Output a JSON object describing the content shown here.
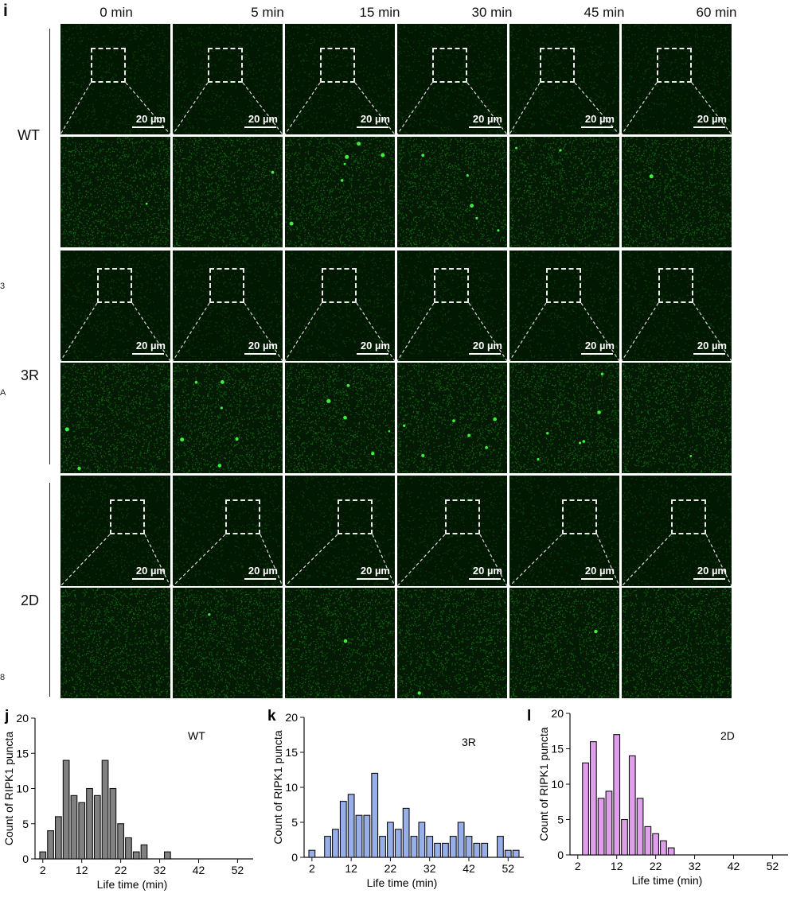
{
  "figure": {
    "panel_i_letter": "i",
    "time_labels": [
      "0 min",
      "5 min",
      "15 min",
      "30 min",
      "45 min",
      "60 min"
    ],
    "row_labels": [
      "WT",
      "3R",
      "2D"
    ],
    "scale_bar_label": "20 µm",
    "edge_fragments": [
      "3",
      "A",
      "8"
    ],
    "colors": {
      "fluorescence": "#19c219",
      "background": "#031803",
      "bars_wt": "#808080",
      "bars_3r": "#98aee8",
      "bars_2d": "#df9fea"
    }
  },
  "chart_data": [
    {
      "type": "bar",
      "panel_letter": "j",
      "annotation": "WT",
      "xlabel": "Life time (min)",
      "ylabel": "Count of RIPK1 puncta",
      "xlim": [
        0,
        56
      ],
      "ylim": [
        0,
        20
      ],
      "xticks": [
        2,
        12,
        22,
        32,
        42,
        52
      ],
      "yticks": [
        0,
        5,
        10,
        15,
        20
      ],
      "x": [
        2,
        4,
        6,
        8,
        10,
        12,
        14,
        16,
        18,
        20,
        22,
        24,
        26,
        28,
        30,
        32,
        34
      ],
      "values": [
        1,
        4,
        6,
        14,
        9,
        8,
        10,
        9,
        14,
        10,
        5,
        3,
        1,
        2,
        0,
        0,
        1
      ],
      "color": "#808080"
    },
    {
      "type": "bar",
      "panel_letter": "k",
      "annotation": "3R",
      "xlabel": "Life time (min)",
      "ylabel": "Count of RIPK1 puncta",
      "xlim": [
        0,
        56
      ],
      "ylim": [
        0,
        20
      ],
      "xticks": [
        2,
        12,
        22,
        32,
        42,
        52
      ],
      "yticks": [
        0,
        5,
        10,
        15,
        20
      ],
      "x": [
        2,
        6,
        8,
        10,
        12,
        14,
        16,
        18,
        20,
        22,
        24,
        26,
        28,
        30,
        32,
        34,
        36,
        38,
        40,
        42,
        44,
        46,
        50,
        52,
        54
      ],
      "values": [
        1,
        3,
        4,
        8,
        9,
        6,
        6,
        12,
        3,
        5,
        4,
        7,
        3,
        5,
        3,
        2,
        2,
        3,
        5,
        3,
        2,
        2,
        3,
        1,
        1
      ],
      "color": "#98aee8"
    },
    {
      "type": "bar",
      "panel_letter": "l",
      "annotation": "2D",
      "xlabel": "Life time (min)",
      "ylabel": "Count of RIPK1 puncta",
      "xlim": [
        0,
        56
      ],
      "ylim": [
        0,
        20
      ],
      "xticks": [
        2,
        12,
        22,
        32,
        42,
        52
      ],
      "yticks": [
        0,
        5,
        10,
        15,
        20
      ],
      "x": [
        4,
        6,
        8,
        10,
        12,
        14,
        16,
        18,
        20,
        22,
        24,
        26
      ],
      "values": [
        13,
        16,
        8,
        9,
        17,
        5,
        14,
        8,
        4,
        3,
        2,
        1
      ],
      "color": "#df9fea"
    }
  ]
}
